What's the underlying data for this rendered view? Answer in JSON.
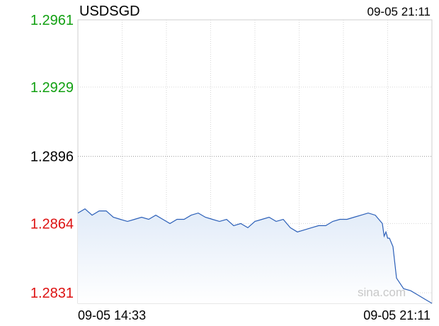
{
  "chart_data": {
    "type": "line",
    "title": "USDSGD",
    "timestamp": "09-05 21:11",
    "x_start_label": "09-05 14:33",
    "x_end_label": "09-05 21:11",
    "xlabel": "",
    "ylabel": "",
    "y_ticks": [
      {
        "label": "1.2961",
        "value": 1.2961,
        "color": "#11a011"
      },
      {
        "label": "1.2929",
        "value": 1.2929,
        "color": "#11a011"
      },
      {
        "label": "1.2896",
        "value": 1.2896,
        "color": "#000000"
      },
      {
        "label": "1.2864",
        "value": 1.2864,
        "color": "#dd1111"
      },
      {
        "label": "1.2831",
        "value": 1.2831,
        "color": "#dd1111"
      }
    ],
    "ylim": [
      1.2826,
      1.2961
    ],
    "reference_value": 1.2896,
    "grid": true,
    "watermark": "sina.com",
    "line_color": "#2b5fb8",
    "series": [
      {
        "x": [
          0,
          0.02,
          0.04,
          0.06,
          0.08,
          0.1,
          0.12,
          0.14,
          0.16,
          0.18,
          0.2,
          0.22,
          0.24,
          0.26,
          0.28,
          0.3,
          0.32,
          0.34,
          0.36,
          0.38,
          0.4,
          0.42,
          0.44,
          0.46,
          0.48,
          0.5,
          0.52,
          0.54,
          0.56,
          0.58,
          0.6,
          0.62,
          0.64,
          0.66,
          0.68,
          0.7,
          0.72,
          0.74,
          0.76,
          0.78,
          0.8,
          0.82,
          0.84,
          0.86,
          0.865,
          0.87,
          0.875,
          0.88,
          0.89,
          0.9,
          0.92,
          0.94,
          0.96,
          0.98,
          1.0
        ],
        "values": [
          1.2869,
          1.2871,
          1.2868,
          1.287,
          1.287,
          1.2867,
          1.2866,
          1.2865,
          1.2866,
          1.2867,
          1.2866,
          1.2868,
          1.2866,
          1.2864,
          1.2866,
          1.2866,
          1.2868,
          1.2869,
          1.2867,
          1.2866,
          1.2865,
          1.2866,
          1.2863,
          1.2864,
          1.2862,
          1.2865,
          1.2866,
          1.2867,
          1.2865,
          1.2866,
          1.2862,
          1.286,
          1.2861,
          1.2862,
          1.2863,
          1.2863,
          1.2865,
          1.2866,
          1.2866,
          1.2867,
          1.2868,
          1.2869,
          1.2868,
          1.2864,
          1.2858,
          1.286,
          1.2857,
          1.2857,
          1.2853,
          1.2838,
          1.2833,
          1.2832,
          1.283,
          1.2828,
          1.2826
        ]
      }
    ]
  }
}
